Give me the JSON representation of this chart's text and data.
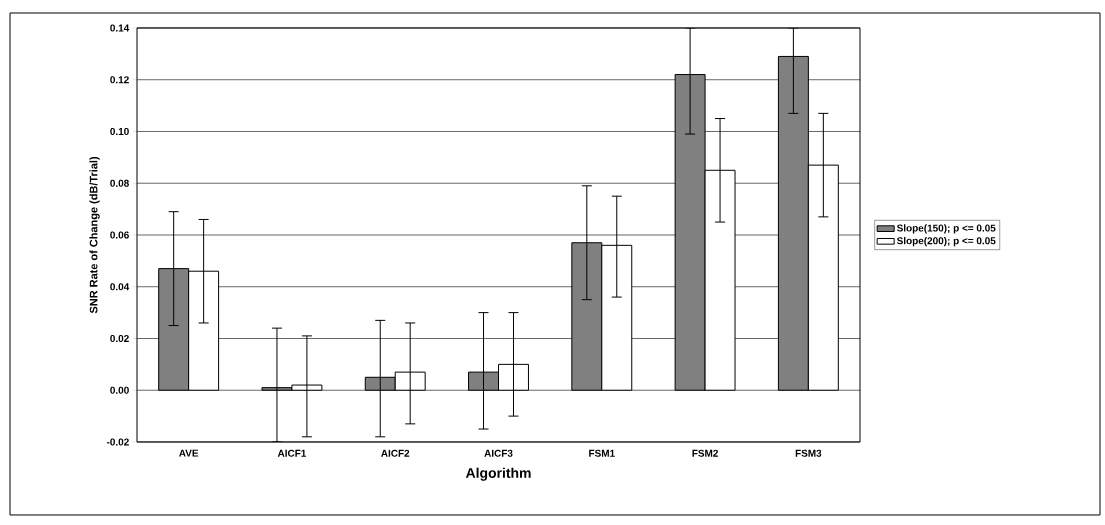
{
  "chart_data": {
    "type": "bar",
    "xlabel": "Algorithm",
    "ylabel": "SNR Rate of Change (dB/Trial)",
    "categories": [
      "AVE",
      "AICF1",
      "AICF2",
      "AICF3",
      "FSM1",
      "FSM2",
      "FSM3"
    ],
    "series": [
      {
        "name": "Slope(150);  p <= 0.05",
        "color": "#808080",
        "values": [
          0.047,
          0.001,
          0.005,
          0.007,
          0.057,
          0.122,
          0.129
        ],
        "errors": [
          [
            0.025,
            0.069
          ],
          [
            -0.02,
            0.024
          ],
          [
            -0.018,
            0.027
          ],
          [
            -0.015,
            0.03
          ],
          [
            0.035,
            0.079
          ],
          [
            0.099,
            0.14
          ],
          [
            0.107,
            0.14
          ]
        ]
      },
      {
        "name": "Slope(200);  p <= 0.05",
        "color": "#ffffff",
        "values": [
          0.046,
          0.002,
          0.007,
          0.01,
          0.056,
          0.085,
          0.087
        ],
        "errors": [
          [
            0.026,
            0.066
          ],
          [
            -0.018,
            0.021
          ],
          [
            -0.013,
            0.026
          ],
          [
            -0.01,
            0.03
          ],
          [
            0.036,
            0.075
          ],
          [
            0.065,
            0.105
          ],
          [
            0.067,
            0.107
          ]
        ]
      }
    ],
    "ylim": [
      -0.02,
      0.14
    ],
    "yticks": [
      {
        "value": -0.02,
        "label": "-0.02"
      },
      {
        "value": 0,
        "label": "0.00"
      },
      {
        "value": 0.02,
        "label": "0.02"
      },
      {
        "value": 0.04,
        "label": "0.04"
      },
      {
        "value": 0.06,
        "label": "0.06"
      },
      {
        "value": 0.08,
        "label": "0.08"
      },
      {
        "value": 0.1,
        "label": "0.10"
      },
      {
        "value": 0.12,
        "label": "0.12"
      },
      {
        "value": 0.14,
        "label": "0.14"
      }
    ],
    "grid": "y",
    "legend": "right"
  }
}
